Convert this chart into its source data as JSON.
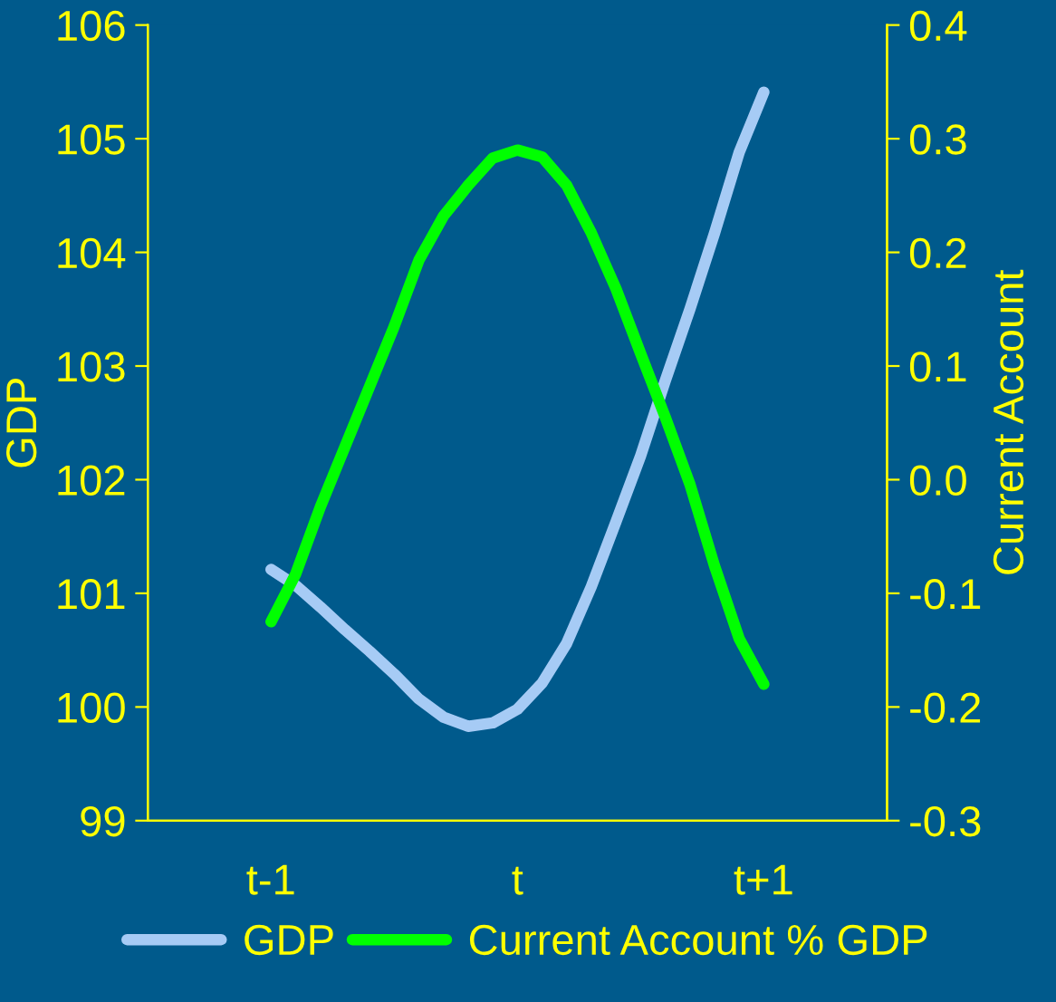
{
  "chart_data": {
    "type": "line",
    "ylabel": "GDP",
    "y2label": "Current Account",
    "categories": [
      "t-1",
      null,
      null,
      null,
      null,
      null,
      null,
      null,
      null,
      null,
      "t",
      null,
      null,
      null,
      null,
      null,
      null,
      null,
      null,
      null,
      "t+1"
    ],
    "ylim": [
      99,
      106
    ],
    "yticks": [
      99,
      100,
      101,
      102,
      103,
      104,
      105,
      106
    ],
    "y2lim": [
      -0.3,
      0.4
    ],
    "y2ticks": [
      -0.3,
      -0.2,
      -0.1,
      {
        "value": 0.0,
        "label": "0.0"
      },
      0.1,
      0.2,
      0.3,
      0.4
    ],
    "series": [
      {
        "name": "GDP",
        "color": "#a6cbf5",
        "values": [
          101.21,
          101.07,
          100.88,
          100.68,
          100.49,
          100.29,
          100.07,
          99.91,
          99.83,
          99.86,
          99.98,
          100.21,
          100.56,
          101.06,
          101.63,
          102.21,
          102.87,
          103.5,
          104.17,
          104.88,
          105.41
        ]
      },
      {
        "name": "Current Account % GDP",
        "color": "#00ff00",
        "axis": "y2",
        "values": [
          -0.125,
          -0.083,
          -0.024,
          0.029,
          0.082,
          0.135,
          0.193,
          0.232,
          0.259,
          0.283,
          0.29,
          0.284,
          0.259,
          0.217,
          0.168,
          0.111,
          0.055,
          -0.004,
          -0.076,
          -0.14,
          -0.18
        ]
      }
    ],
    "grid": false,
    "legend": "bottom",
    "marker": "none",
    "line_style": "solid"
  }
}
